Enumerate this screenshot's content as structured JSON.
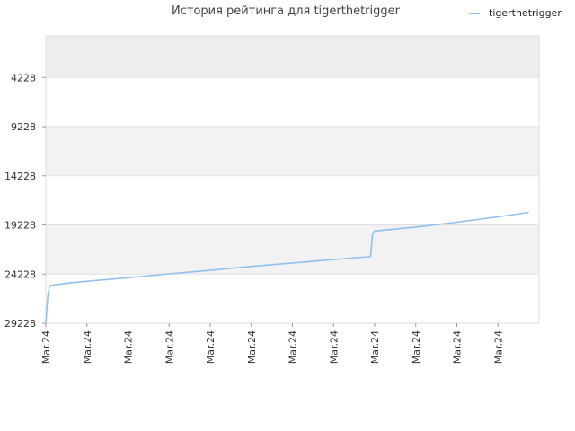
{
  "chart_data": {
    "type": "line",
    "title": "История рейтинга для tigerthetrigger",
    "xlabel": "",
    "ylabel": "",
    "y_reversed": true,
    "ylim": [
      29228,
      0
    ],
    "yticks": [
      4228,
      9228,
      14228,
      19228,
      24228,
      29228
    ],
    "xtick_labels": [
      "Mar.24",
      "Mar.24",
      "Mar.24",
      "Mar.24",
      "Mar.24",
      "Mar.24",
      "Mar.24",
      "Mar.24",
      "Mar.24",
      "Mar.24",
      "Mar.24",
      "Mar.24"
    ],
    "grid": true,
    "legend_position": "top-right",
    "series": [
      {
        "name": "tigerthetrigger",
        "color": "#90c0f0",
        "points": [
          {
            "x": 0.0,
            "y": 29228
          },
          {
            "x": 0.05,
            "y": 26300
          },
          {
            "x": 0.1,
            "y": 25400
          },
          {
            "x": 0.5,
            "y": 25150
          },
          {
            "x": 1.0,
            "y": 24950
          },
          {
            "x": 2.0,
            "y": 24600
          },
          {
            "x": 3.0,
            "y": 24200
          },
          {
            "x": 4.0,
            "y": 23850
          },
          {
            "x": 5.0,
            "y": 23450
          },
          {
            "x": 6.0,
            "y": 23100
          },
          {
            "x": 7.0,
            "y": 22750
          },
          {
            "x": 7.9,
            "y": 22450
          },
          {
            "x": 7.95,
            "y": 20100
          },
          {
            "x": 8.0,
            "y": 19850
          },
          {
            "x": 9.0,
            "y": 19450
          },
          {
            "x": 10.0,
            "y": 18950
          },
          {
            "x": 11.0,
            "y": 18400
          },
          {
            "x": 11.75,
            "y": 17950
          }
        ]
      }
    ]
  }
}
